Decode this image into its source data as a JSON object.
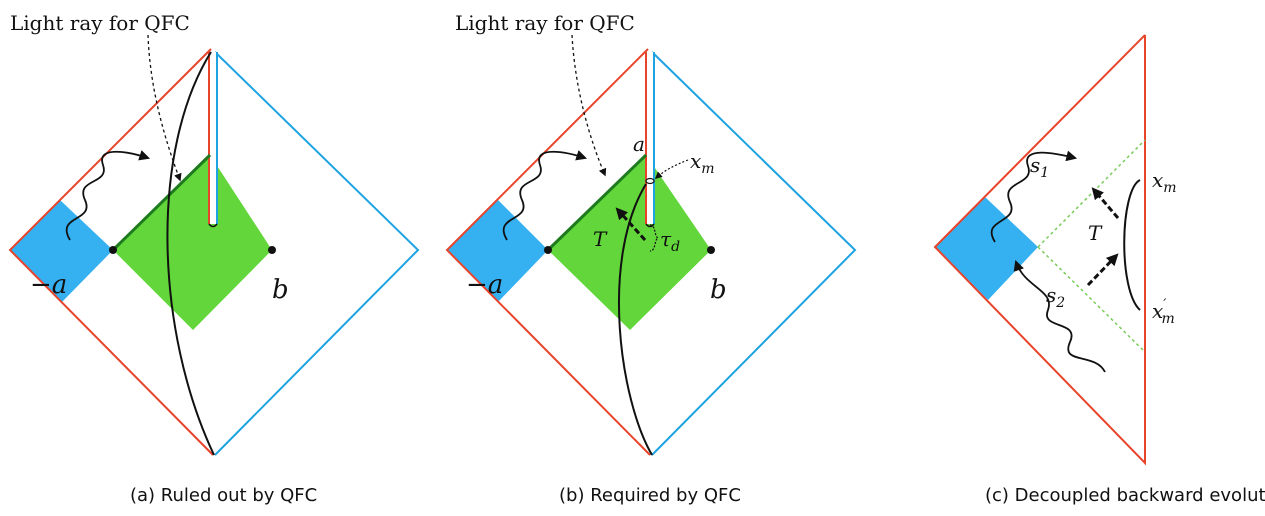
{
  "colors": {
    "red": "#e8442b",
    "blue": "#1ea3e2",
    "green": "#62d63a",
    "blue_fill": "#35b1f2",
    "dark_green": "#1e7a1e",
    "dotted_green": "#7acc5a",
    "black": "#111111"
  },
  "panel_a": {
    "title": "Light ray for QFC",
    "label_neg_a": "−a",
    "label_b": "b",
    "caption": "(a) Ruled out by QFC"
  },
  "panel_b": {
    "title": "Light ray for QFC",
    "label_a": "a",
    "label_x": "x",
    "label_x_sub": "m",
    "label_T": "T",
    "label_tau": "τ",
    "label_tau_sub": "d",
    "label_neg_a": "−a",
    "label_b": "b",
    "caption": "(b) Required by QFC"
  },
  "panel_c": {
    "label_s1": "s",
    "label_s1_sub": "1",
    "label_s2": "s",
    "label_s2_sub": "2",
    "label_T": "T",
    "label_xm": "x",
    "label_xm_sub": "m",
    "label_xm2": "x",
    "label_xm2_prime": "′",
    "label_xm2_sub": "m",
    "caption": "(c) Decoupled backward evolution"
  }
}
